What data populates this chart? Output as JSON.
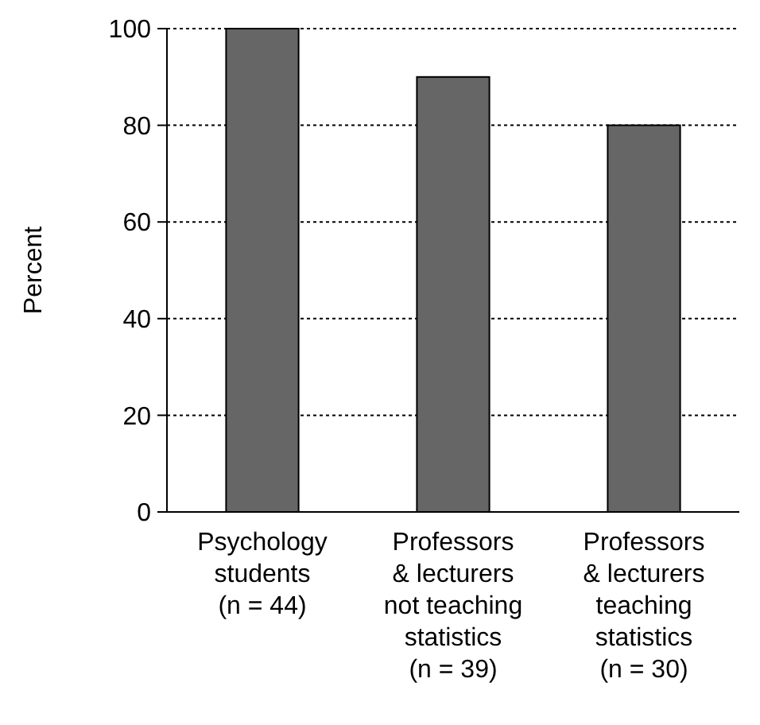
{
  "chart_data": {
    "type": "bar",
    "ylabel": "Percent",
    "categories": [
      "Psychology\nstudents\n(n = 44)",
      "Professors\n& lecturers\nnot teaching\nstatistics\n(n = 39)",
      "Professors\n& lecturers\nteaching\nstatistics\n(n = 30)"
    ],
    "values": [
      100,
      90,
      80
    ],
    "color": "#666666",
    "ylim": [
      0,
      100
    ],
    "yticks": [
      0,
      20,
      40,
      60,
      80,
      100
    ],
    "grid": "y"
  }
}
